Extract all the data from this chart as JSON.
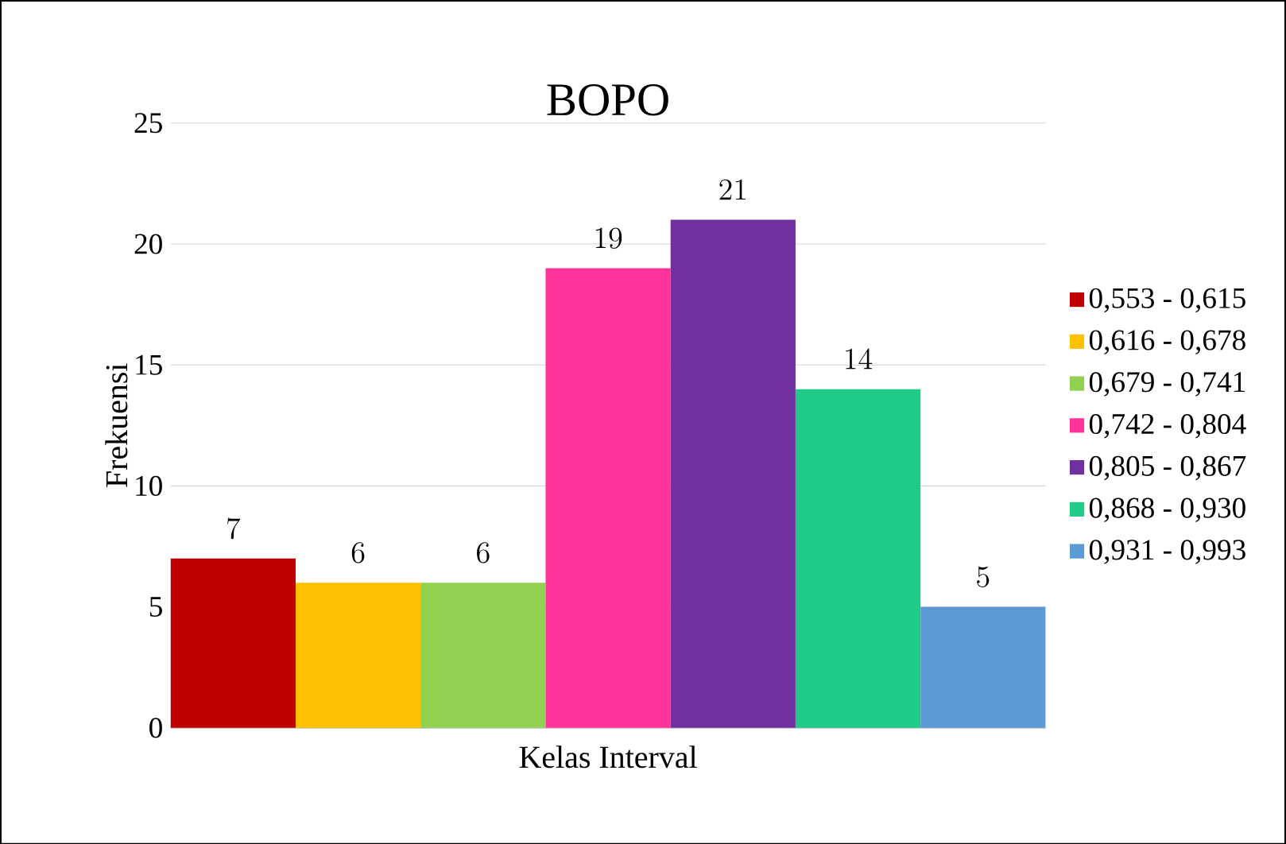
{
  "chart_data": {
    "type": "bar",
    "title": "BOPO",
    "xlabel": "Kelas Interval",
    "ylabel": "Frekuensi",
    "categories": [
      null
    ],
    "series": [
      {
        "name": "0,553 - 0,615",
        "color": "#c00000",
        "values": [
          7
        ]
      },
      {
        "name": "0,616 - 0,678",
        "color": "#ffc000",
        "values": [
          6
        ]
      },
      {
        "name": "0,679 - 0,741",
        "color": "#92d050",
        "values": [
          6
        ]
      },
      {
        "name": "0,742 - 0,804",
        "color": "#ff3399",
        "values": [
          19
        ]
      },
      {
        "name": "0,805 - 0,867",
        "color": "#7030a0",
        "values": [
          21
        ]
      },
      {
        "name": "0,868 - 0,930",
        "color": "#1fcb87",
        "values": [
          14
        ]
      },
      {
        "name": "0,931 - 0,993",
        "color": "#5b9bd5",
        "values": [
          5
        ]
      }
    ],
    "ylim": [
      0,
      25
    ],
    "yticks": [
      0,
      5,
      10,
      15,
      20,
      25
    ],
    "grid": "y",
    "legend": "right",
    "data_labels": true
  }
}
